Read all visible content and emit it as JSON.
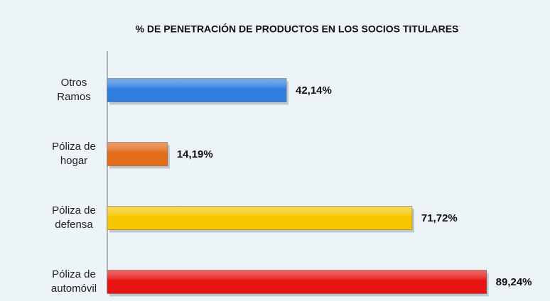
{
  "chart_data": {
    "type": "bar",
    "orientation": "horizontal",
    "title": "% DE PENETRACIÓN DE PRODUCTOS EN LOS SOCIOS TITULARES",
    "categories": [
      "Otros Ramos",
      "Póliza de hogar",
      "Póliza de defensa",
      "Póliza de automóvil"
    ],
    "values": [
      42.14,
      14.19,
      71.72,
      89.24
    ],
    "value_labels": [
      "42,14%",
      "14,19%",
      "71,72%",
      "89,24%"
    ],
    "colors": [
      "#2f7fe0",
      "#e26c1a",
      "#f6c700",
      "#e81414"
    ]
  }
}
